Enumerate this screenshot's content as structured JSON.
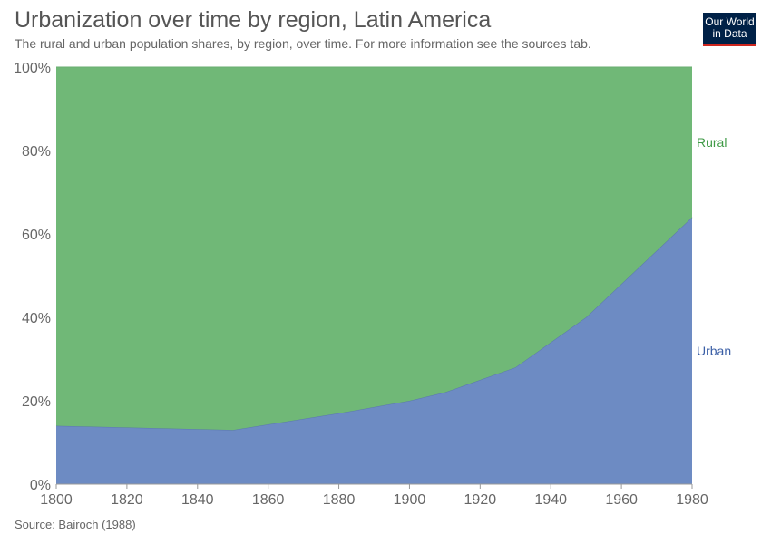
{
  "header": {
    "title": "Urbanization over time by region, Latin America",
    "subtitle": "The rural and urban population shares, by region, over time. For more information see the sources tab."
  },
  "logo": {
    "line1": "Our World",
    "line2": "in Data",
    "bg": "#002147",
    "accent": "#ce261e"
  },
  "footer": {
    "source": "Source: Bairoch (1988)"
  },
  "chart_data": {
    "type": "area",
    "stacked": true,
    "x_ticks": [
      1800,
      1820,
      1840,
      1860,
      1880,
      1900,
      1920,
      1940,
      1960,
      1980
    ],
    "y_ticks": [
      "0%",
      "20%",
      "40%",
      "60%",
      "80%",
      "100%"
    ],
    "xlim": [
      1800,
      1980
    ],
    "ylim": [
      0,
      100
    ],
    "grid": "horizontal dotted",
    "x": [
      1800,
      1850,
      1880,
      1900,
      1910,
      1930,
      1950,
      1980
    ],
    "series": [
      {
        "name": "Urban",
        "color": "#6d8bc3",
        "label_color": "#3b5fa6",
        "values": [
          14,
          13,
          17,
          20,
          22,
          28,
          40,
          64
        ]
      },
      {
        "name": "Rural",
        "color": "#70b877",
        "label_color": "#3f9a46",
        "values": [
          86,
          87,
          83,
          80,
          78,
          72,
          60,
          36
        ]
      }
    ]
  }
}
